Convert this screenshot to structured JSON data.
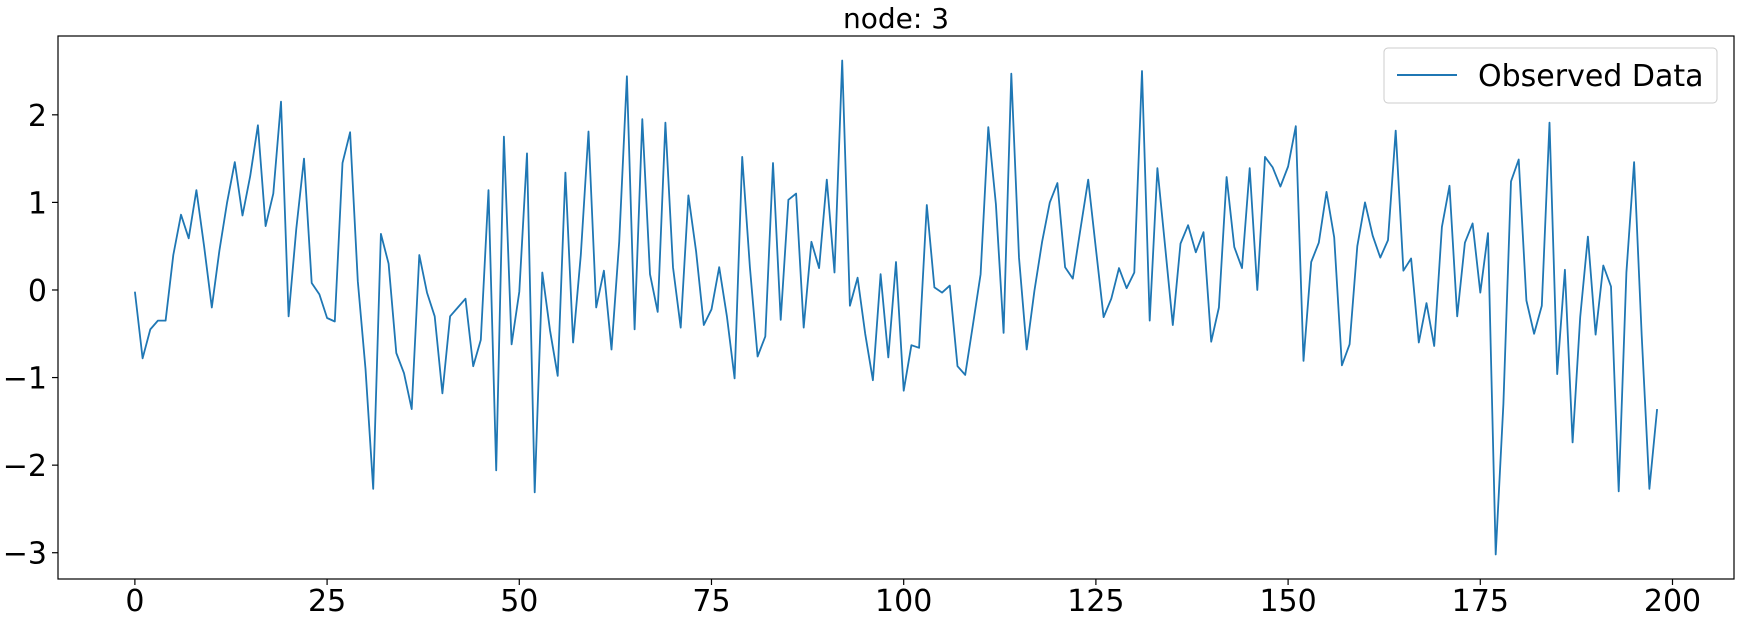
{
  "chart_data": {
    "type": "line",
    "title": "node: 3",
    "xlabel": "",
    "ylabel": "",
    "xlim": [
      -10,
      208
    ],
    "ylim": [
      -3.3,
      2.9
    ],
    "xticks": [
      0,
      25,
      50,
      75,
      100,
      125,
      150,
      175,
      200
    ],
    "yticks": [
      -3,
      -2,
      -1,
      0,
      1,
      2
    ],
    "xtick_labels": [
      "0",
      "25",
      "50",
      "75",
      "100",
      "125",
      "150",
      "175",
      "200"
    ],
    "ytick_labels": [
      "−3",
      "−2",
      "−1",
      "0",
      "1",
      "2"
    ],
    "grid": false,
    "legend_position": "top-right",
    "series": [
      {
        "name": "Observed Data",
        "color": "#1f77b4",
        "x": [
          0,
          1,
          2,
          3,
          4,
          5,
          6,
          7,
          8,
          9,
          10,
          11,
          12,
          13,
          14,
          15,
          16,
          17,
          18,
          19,
          20,
          21,
          22,
          23,
          24,
          25,
          26,
          27,
          28,
          29,
          30,
          31,
          32,
          33,
          34,
          35,
          36,
          37,
          38,
          39,
          40,
          41,
          42,
          43,
          44,
          45,
          46,
          47,
          48,
          49,
          50,
          51,
          52,
          53,
          54,
          55,
          56,
          57,
          58,
          59,
          60,
          61,
          62,
          63,
          64,
          65,
          66,
          67,
          68,
          69,
          70,
          71,
          72,
          73,
          74,
          75,
          76,
          77,
          78,
          79,
          80,
          81,
          82,
          83,
          84,
          85,
          86,
          87,
          88,
          89,
          90,
          91,
          92,
          93,
          94,
          95,
          96,
          97,
          98,
          99,
          100,
          101,
          102,
          103,
          104,
          105,
          106,
          107,
          108,
          109,
          110,
          111,
          112,
          113,
          114,
          115,
          116,
          117,
          118,
          119,
          120,
          121,
          122,
          123,
          124,
          125,
          126,
          127,
          128,
          129,
          130,
          131,
          132,
          133,
          134,
          135,
          136,
          137,
          138,
          139,
          140,
          141,
          142,
          143,
          144,
          145,
          146,
          147,
          148,
          149,
          150,
          151,
          152,
          153,
          154,
          155,
          156,
          157,
          158,
          159,
          160,
          161,
          162,
          163,
          164,
          165,
          166,
          167,
          168,
          169,
          170,
          171,
          172,
          173,
          174,
          175,
          176,
          177,
          178,
          179,
          180,
          181,
          182,
          183,
          184,
          185,
          186,
          187,
          188,
          189,
          190,
          191,
          192,
          193,
          194,
          195,
          196,
          197,
          198
        ],
        "values": [
          -0.02,
          -0.78,
          -0.45,
          -0.35,
          -0.35,
          0.4,
          0.86,
          0.59,
          1.14,
          0.5,
          -0.2,
          0.45,
          1.0,
          1.46,
          0.85,
          1.3,
          1.88,
          0.73,
          1.1,
          2.15,
          -0.3,
          0.7,
          1.5,
          0.08,
          -0.05,
          -0.32,
          -0.36,
          1.45,
          1.8,
          0.1,
          -0.9,
          -2.27,
          0.64,
          0.3,
          -0.72,
          -0.95,
          -1.36,
          0.4,
          -0.03,
          -0.3,
          -1.18,
          -0.3,
          -0.2,
          -0.1,
          -0.87,
          -0.57,
          1.14,
          -2.06,
          1.75,
          -0.62,
          -0.02,
          1.56,
          -2.31,
          0.2,
          -0.46,
          -0.98,
          1.34,
          -0.6,
          0.4,
          1.81,
          -0.2,
          0.22,
          -0.68,
          0.55,
          2.44,
          -0.45,
          1.95,
          0.18,
          -0.25,
          1.91,
          0.26,
          -0.43,
          1.08,
          0.44,
          -0.4,
          -0.22,
          0.26,
          -0.3,
          -1.01,
          1.52,
          0.26,
          -0.76,
          -0.53,
          1.45,
          -0.34,
          1.03,
          1.1,
          -0.43,
          0.55,
          0.25,
          1.26,
          0.2,
          2.62,
          -0.18,
          0.14,
          -0.5,
          -1.03,
          0.18,
          -0.77,
          0.32,
          -1.15,
          -0.63,
          -0.66,
          0.97,
          0.03,
          -0.03,
          0.05,
          -0.87,
          -0.97,
          -0.4,
          0.18,
          1.86,
          0.98,
          -0.49,
          2.47,
          0.37,
          -0.68,
          -0.01,
          0.55,
          1.0,
          1.22,
          0.26,
          0.13,
          0.7,
          1.26,
          0.47,
          -0.31,
          -0.1,
          0.25,
          0.02,
          0.2,
          2.5,
          -0.35,
          1.39,
          0.5,
          -0.4,
          0.53,
          0.74,
          0.43,
          0.66,
          -0.59,
          -0.2,
          1.29,
          0.49,
          0.25,
          1.39,
          0.0,
          1.52,
          1.4,
          1.18,
          1.41,
          1.87,
          -0.81,
          0.32,
          0.54,
          1.12,
          0.6,
          -0.86,
          -0.62,
          0.5,
          1.0,
          0.62,
          0.37,
          0.57,
          1.82,
          0.22,
          0.36,
          -0.6,
          -0.15,
          -0.64,
          0.72,
          1.19,
          -0.3,
          0.54,
          0.76,
          -0.03,
          0.65,
          -3.02,
          -1.3,
          1.24,
          1.49,
          -0.12,
          -0.5,
          -0.18,
          1.91,
          -0.96,
          0.23,
          -1.74,
          -0.31,
          0.61,
          -0.51,
          0.28,
          0.04,
          -2.3,
          0.2,
          1.46,
          -0.52,
          -2.27,
          -1.36
        ]
      }
    ]
  }
}
